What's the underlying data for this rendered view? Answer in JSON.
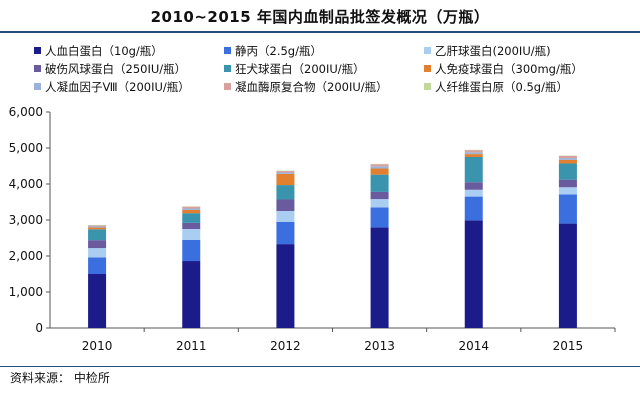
{
  "chart_data": {
    "type": "bar",
    "stacked": true,
    "title": "2010~2015 年国内血制品批签发概况（万瓶）",
    "categories": [
      "2010",
      "2011",
      "2012",
      "2013",
      "2014",
      "2015"
    ],
    "ylim": [
      0,
      6000
    ],
    "yticks": [
      "0",
      "1,000",
      "2,000",
      "3,000",
      "4,000",
      "5,000",
      "6,000"
    ],
    "ytick_values": [
      0,
      1000,
      2000,
      3000,
      4000,
      5000,
      6000
    ],
    "legend_position": "top",
    "grid": false,
    "series": [
      {
        "name": "人血白蛋白（10g/瓶）",
        "color": "#1b1b8a",
        "values": [
          1500,
          1860,
          2330,
          2790,
          2990,
          2900
        ]
      },
      {
        "name": "静丙（2.5g/瓶）",
        "color": "#3b6fe0",
        "values": [
          460,
          590,
          620,
          560,
          660,
          810
        ]
      },
      {
        "name": "乙肝球蛋白(200IU/瓶)",
        "color": "#a9cef2",
        "values": [
          260,
          300,
          300,
          230,
          190,
          200
        ]
      },
      {
        "name": "破伤风球蛋白（250IU/瓶）",
        "color": "#6a5a9e",
        "values": [
          220,
          170,
          320,
          200,
          210,
          210
        ]
      },
      {
        "name": "狂犬球蛋白（200IU/瓶）",
        "color": "#3a94ad",
        "values": [
          300,
          270,
          400,
          480,
          700,
          450
        ]
      },
      {
        "name": "人免疫球蛋白（300mg/瓶）",
        "color": "#e38030",
        "values": [
          50,
          90,
          310,
          170,
          80,
          100
        ]
      },
      {
        "name": "人凝血因子Ⅷ（200IU/瓶）",
        "color": "#9bb3d8",
        "values": [
          30,
          40,
          40,
          60,
          50,
          50
        ]
      },
      {
        "name": "凝血酶原复合物（200IU/瓶）",
        "color": "#d8a09e",
        "values": [
          30,
          50,
          40,
          60,
          60,
          60
        ]
      },
      {
        "name": "人纤维蛋白原（0.5g/瓶）",
        "color": "#c3d69b",
        "values": [
          10,
          10,
          10,
          10,
          10,
          10
        ]
      }
    ]
  },
  "source_note": "资料来源：  中检所"
}
